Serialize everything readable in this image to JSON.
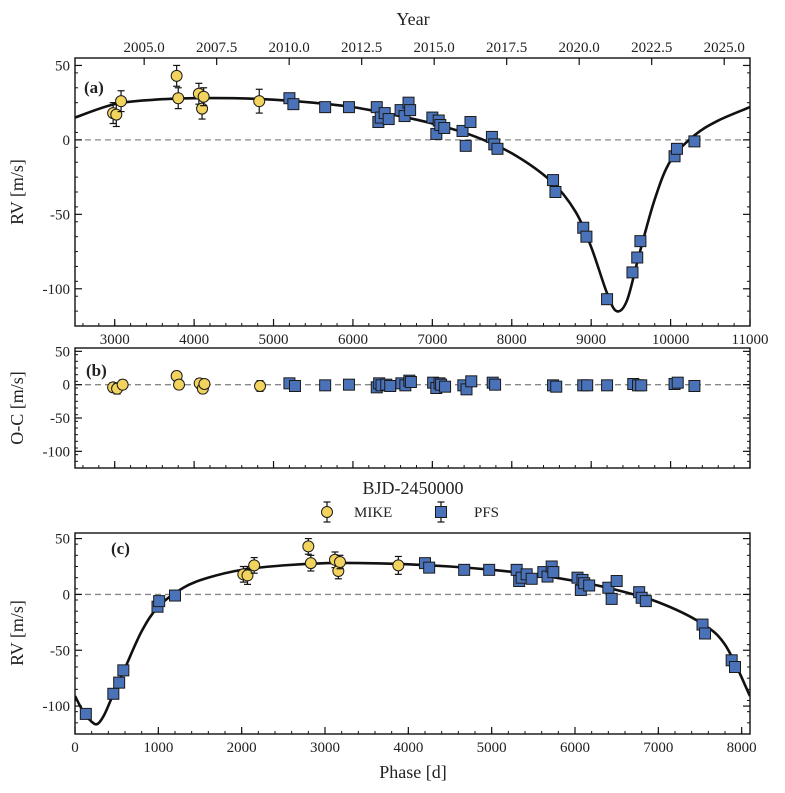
{
  "colors": {
    "mike": "#f2d35e",
    "pfs": "#4a72b8",
    "edge": "#1a1a1a",
    "model": "#111111",
    "zero": "#888888"
  },
  "legend": {
    "mike_label": "MIKE",
    "pfs_label": "PFS",
    "marker_mike": "circle",
    "marker_pfs": "square"
  },
  "chart_data": [
    {
      "panel": "(a)",
      "type": "scatter",
      "xlabel": "BJD-2450000",
      "ylabel": "RV [m/s]",
      "top_axis_label": "Year",
      "xlim": [
        2500,
        11000
      ],
      "ylim": [
        -125,
        55
      ],
      "xticks": [
        3000,
        4000,
        5000,
        6000,
        7000,
        8000,
        9000,
        10000,
        11000
      ],
      "yticks": [
        50,
        0,
        -50,
        -100
      ],
      "top_ticks": [
        "2005.0",
        "2007.5",
        "2010.0",
        "2012.5",
        "2015.0",
        "2017.5",
        "2020.0",
        "2022.5",
        "2025.0"
      ],
      "model_curve": {
        "x": [
          2500,
          3000,
          3500,
          4000,
          4500,
          5000,
          5500,
          6000,
          6500,
          7000,
          7500,
          8000,
          8500,
          8800,
          9000,
          9200,
          9320,
          9450,
          9600,
          9800,
          10000,
          10300,
          10600,
          11000
        ],
        "y": [
          15,
          24,
          27,
          28,
          28,
          27,
          25,
          22,
          17,
          11,
          3,
          -9,
          -28,
          -48,
          -72,
          -103,
          -115,
          -108,
          -78,
          -40,
          -14,
          3,
          13,
          22
        ]
      },
      "series": [
        {
          "name": "MIKE",
          "x": [
            2980,
            3020,
            3080,
            3780,
            3800,
            4060,
            4100,
            4120,
            4820
          ],
          "y": [
            18,
            17,
            26,
            43,
            28,
            31,
            21,
            29,
            26
          ],
          "err": [
            7,
            8,
            7,
            7,
            7,
            7,
            7,
            6,
            8
          ]
        },
        {
          "name": "PFS",
          "x": [
            5200,
            5250,
            5650,
            5950,
            6300,
            6320,
            6350,
            6400,
            6450,
            6600,
            6650,
            6700,
            6720,
            7000,
            7050,
            7080,
            7100,
            7150,
            7380,
            7420,
            7480,
            7750,
            7780,
            7820,
            8520,
            8550,
            8900,
            8940,
            9200,
            9520,
            9580,
            9620,
            10050,
            10080,
            10300
          ],
          "y": [
            28,
            24,
            22,
            22,
            22,
            12,
            15,
            18,
            14,
            20,
            16,
            25,
            20,
            15,
            4,
            13,
            10,
            8,
            6,
            -4,
            12,
            2,
            -3,
            -6,
            -27,
            -35,
            -59,
            -65,
            -107,
            -89,
            -79,
            -68,
            -11,
            -6,
            -1
          ],
          "err": [
            3,
            3,
            3,
            3,
            3,
            3,
            3,
            3,
            3,
            3,
            3,
            3,
            3,
            3,
            3,
            3,
            3,
            3,
            3,
            3,
            3,
            3,
            3,
            3,
            3,
            3,
            3,
            3,
            3,
            3,
            3,
            3,
            3,
            3,
            3
          ]
        }
      ]
    },
    {
      "panel": "(b)",
      "type": "scatter",
      "xlabel": "BJD-2450000",
      "ylabel": "O-C [m/s]",
      "xlim": [
        2500,
        11000
      ],
      "ylim": [
        -125,
        55
      ],
      "yticks": [
        50,
        0,
        -50,
        -100
      ],
      "series": [
        {
          "name": "MIKE",
          "x": [
            2980,
            3030,
            3100,
            3780,
            3810,
            4070,
            4110,
            4130,
            4830
          ],
          "y": [
            -4,
            -6,
            0,
            13,
            0,
            2,
            -6,
            1,
            -2
          ],
          "err": [
            7,
            8,
            7,
            7,
            7,
            7,
            7,
            6,
            8
          ]
        },
        {
          "name": "PFS",
          "x": [
            5200,
            5270,
            5650,
            5950,
            6300,
            6330,
            6360,
            6420,
            6470,
            6610,
            6660,
            6710,
            6730,
            7010,
            7050,
            7090,
            7110,
            7160,
            7390,
            7430,
            7490,
            7760,
            7790,
            8520,
            8560,
            8900,
            8950,
            9200,
            9530,
            9590,
            9630,
            10050,
            10090,
            10300
          ],
          "y": [
            2,
            -2,
            -1,
            0,
            -4,
            2,
            -1,
            0,
            -2,
            2,
            -1,
            6,
            4,
            3,
            -5,
            2,
            0,
            -3,
            -1,
            -7,
            5,
            3,
            0,
            -1,
            -3,
            -1,
            -1,
            -1,
            1,
            -1,
            -1,
            1,
            3,
            -2
          ],
          "err": [
            3,
            3,
            3,
            3,
            3,
            3,
            3,
            3,
            3,
            3,
            3,
            3,
            3,
            3,
            3,
            3,
            3,
            3,
            3,
            3,
            3,
            3,
            3,
            3,
            3,
            3,
            3,
            3,
            3,
            3,
            3,
            3,
            3,
            3
          ]
        }
      ]
    },
    {
      "panel": "(c)",
      "type": "scatter",
      "xlabel": "Phase [d]",
      "ylabel": "RV [m/s]",
      "xlim": [
        0,
        8100
      ],
      "ylim": [
        -125,
        55
      ],
      "xticks": [
        0,
        1000,
        2000,
        3000,
        4000,
        5000,
        6000,
        7000,
        8000
      ],
      "yticks": [
        50,
        0,
        -50,
        -100
      ],
      "model_curve": {
        "x": [
          0,
          100,
          200,
          270,
          350,
          450,
          600,
          800,
          1000,
          1300,
          1600,
          2000,
          2500,
          3000,
          3500,
          4000,
          4500,
          5000,
          5500,
          6000,
          6500,
          7000,
          7500,
          7800,
          8100
        ],
        "y": [
          -91,
          -105,
          -114,
          -116,
          -108,
          -91,
          -66,
          -33,
          -11,
          6,
          15,
          22,
          26,
          28,
          28,
          27,
          25,
          22,
          18,
          12,
          4,
          -7,
          -25,
          -45,
          -91
        ]
      },
      "series": [
        {
          "name": "MIKE",
          "x": [
            2020,
            2070,
            2150,
            2800,
            2830,
            3120,
            3160,
            3180,
            3880
          ],
          "y": [
            18,
            17,
            26,
            43,
            28,
            31,
            21,
            29,
            26
          ],
          "err": [
            7,
            8,
            7,
            7,
            7,
            7,
            7,
            6,
            8
          ]
        },
        {
          "name": "PFS",
          "x": [
            130,
            460,
            530,
            580,
            990,
            1010,
            1200,
            4200,
            4250,
            4670,
            4970,
            5300,
            5330,
            5360,
            5420,
            5480,
            5620,
            5670,
            5720,
            5740,
            6030,
            6070,
            6090,
            6110,
            6170,
            6400,
            6440,
            6500,
            6770,
            6800,
            6850,
            7530,
            7560,
            7880,
            7920
          ],
          "y": [
            -107,
            -89,
            -79,
            -68,
            -11,
            -6,
            -1,
            28,
            24,
            22,
            22,
            22,
            12,
            15,
            18,
            14,
            20,
            16,
            25,
            20,
            15,
            4,
            13,
            10,
            8,
            6,
            -4,
            12,
            2,
            -3,
            -6,
            -27,
            -35,
            -59,
            -65
          ],
          "err": [
            3,
            3,
            3,
            3,
            3,
            3,
            3,
            3,
            3,
            3,
            3,
            3,
            3,
            3,
            3,
            3,
            3,
            3,
            3,
            3,
            3,
            3,
            3,
            3,
            3,
            3,
            3,
            3,
            3,
            3,
            3,
            3,
            3,
            3,
            3
          ]
        }
      ]
    }
  ]
}
